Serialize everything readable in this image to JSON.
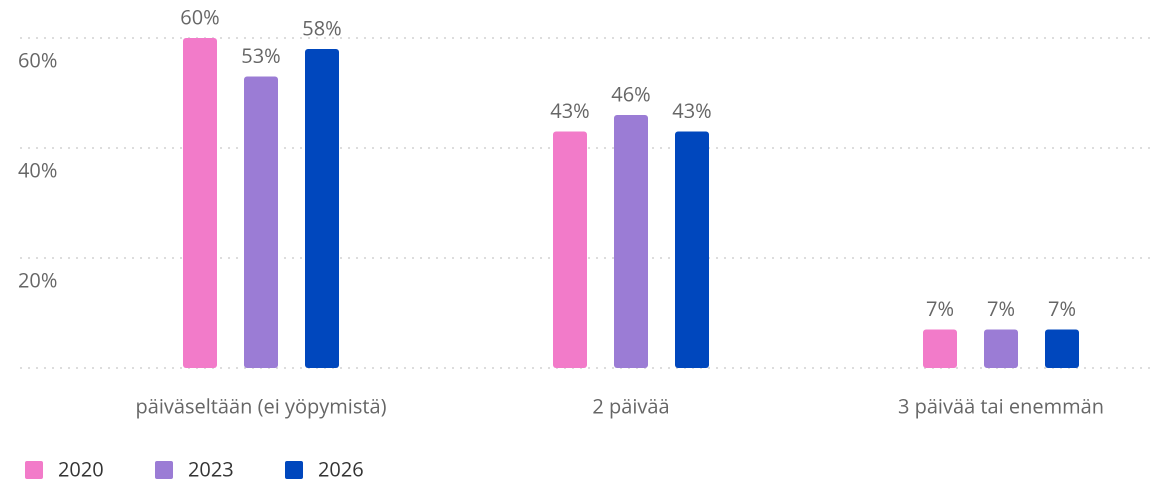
{
  "chart_data": {
    "type": "bar",
    "categories": [
      "päiväseltään (ei yöpymistä)",
      "2 päivää",
      "3 päivää tai enemmän"
    ],
    "series": [
      {
        "name": "2020",
        "color": "#f27bc9",
        "values": [
          60,
          43,
          7
        ],
        "value_labels": [
          "60%",
          "43%",
          "7%"
        ]
      },
      {
        "name": "2023",
        "color": "#9b7cd5",
        "values": [
          53,
          46,
          7
        ],
        "value_labels": [
          "53%",
          "46%",
          "7%"
        ]
      },
      {
        "name": "2026",
        "color": "#0047bd",
        "values": [
          58,
          43,
          7
        ],
        "value_labels": [
          "58%",
          "43%",
          "7%"
        ]
      }
    ],
    "ylim": [
      0,
      66
    ],
    "yticks": [
      {
        "value": 20,
        "label": "20%"
      },
      {
        "value": 40,
        "label": "40%"
      },
      {
        "value": 60,
        "label": "60%"
      }
    ],
    "grid": true,
    "legend": "bottom-left"
  }
}
